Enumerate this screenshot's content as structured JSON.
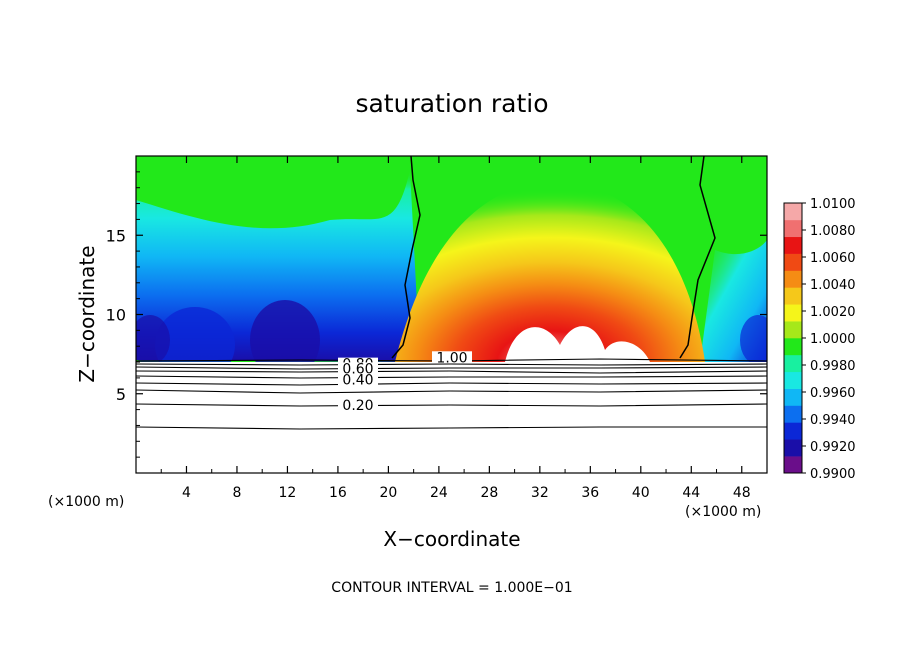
{
  "chart_data": {
    "type": "heatmap",
    "title": "saturation ratio",
    "xlabel": "X−coordinate",
    "ylabel": "Z−coordinate",
    "x_unit_left": "(×1000 m)",
    "x_unit_right": "(×1000 m)",
    "footer": "CONTOUR INTERVAL = 1.000E−01",
    "xlim": [
      0,
      50
    ],
    "ylim": [
      0,
      20
    ],
    "x_ticks": [
      4,
      8,
      12,
      16,
      20,
      24,
      28,
      32,
      36,
      40,
      44,
      48
    ],
    "y_ticks": [
      5,
      10,
      15
    ],
    "colorbar": {
      "levels": [
        "0.9900",
        "0.9920",
        "0.9940",
        "0.9960",
        "0.9980",
        "1.0000",
        "1.0020",
        "1.0040",
        "1.0060",
        "1.0080",
        "1.0100"
      ],
      "colors": [
        "#6a0e8a",
        "#1a0ea8",
        "#0b27d6",
        "#0c6ff0",
        "#10b7f5",
        "#19e8e2",
        "#18f0a0",
        "#22e81a",
        "#a6e81a",
        "#f5f51a",
        "#f5c81a",
        "#f58c14",
        "#f04a14",
        "#e81414",
        "#f07070",
        "#f5a8a8"
      ]
    },
    "contours": [
      {
        "label": "1.00",
        "z": 7.3
      },
      {
        "label": "0.80",
        "z": 6.9
      },
      {
        "label": "0.60",
        "z": 6.6
      },
      {
        "label": "0.40",
        "z": 5.9
      },
      {
        "label": "0.20",
        "z": 4.3
      }
    ]
  }
}
